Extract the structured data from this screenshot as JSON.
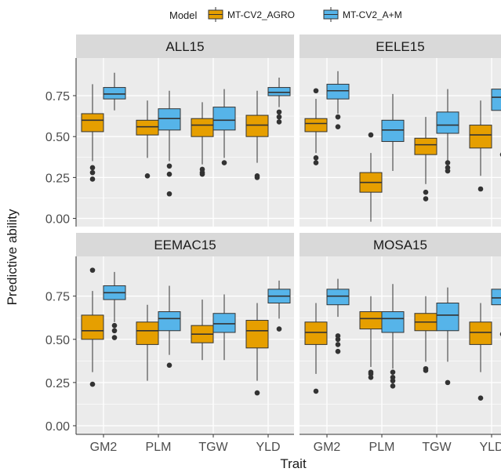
{
  "chart_data": {
    "type": "boxplot",
    "legend": {
      "title": "Model",
      "position": "top",
      "entries": [
        {
          "name": "MT-CV2_AGRO",
          "color": "#E69F00"
        },
        {
          "name": "MT-CV2_A+M",
          "color": "#56B4E9"
        }
      ]
    },
    "xlabel": "Trait",
    "ylabel": "Predictive ability",
    "categories": [
      "GM2",
      "PLM",
      "TGW",
      "YLD"
    ],
    "ylim": [
      -0.05,
      0.98
    ],
    "yticks": [
      0.0,
      0.25,
      0.5,
      0.75
    ],
    "ytick_labels": [
      "0.00",
      "0.25",
      "0.50",
      "0.75"
    ],
    "panel_background": "#ebebeb",
    "strip_background": "#d9d9d9",
    "grid": true,
    "panels": [
      {
        "title": "ALL15",
        "series": [
          {
            "name": "MT-CV2_AGRO",
            "boxes": [
              {
                "category": "GM2",
                "min": 0.35,
                "q1": 0.53,
                "median": 0.6,
                "q3": 0.64,
                "max": 0.82,
                "outliers": [
                  0.31,
                  0.28,
                  0.24
                ]
              },
              {
                "category": "PLM",
                "min": 0.37,
                "q1": 0.51,
                "median": 0.56,
                "q3": 0.6,
                "max": 0.72,
                "outliers": [
                  0.26
                ]
              },
              {
                "category": "TGW",
                "min": 0.33,
                "q1": 0.5,
                "median": 0.57,
                "q3": 0.61,
                "max": 0.71,
                "outliers": [
                  0.3,
                  0.28,
                  0.27
                ]
              },
              {
                "category": "YLD",
                "min": 0.34,
                "q1": 0.5,
                "median": 0.57,
                "q3": 0.63,
                "max": 0.78,
                "outliers": [
                  0.26,
                  0.25
                ]
              }
            ]
          },
          {
            "name": "MT-CV2_A+M",
            "boxes": [
              {
                "category": "GM2",
                "min": 0.66,
                "q1": 0.73,
                "median": 0.76,
                "q3": 0.8,
                "max": 0.89,
                "outliers": []
              },
              {
                "category": "PLM",
                "min": 0.35,
                "q1": 0.54,
                "median": 0.61,
                "q3": 0.67,
                "max": 0.78,
                "outliers": [
                  0.32,
                  0.27,
                  0.15
                ]
              },
              {
                "category": "TGW",
                "min": 0.37,
                "q1": 0.54,
                "median": 0.6,
                "q3": 0.68,
                "max": 0.79,
                "outliers": [
                  0.34
                ]
              },
              {
                "category": "YLD",
                "min": 0.68,
                "q1": 0.75,
                "median": 0.77,
                "q3": 0.8,
                "max": 0.86,
                "outliers": [
                  0.65,
                  0.62,
                  0.59
                ]
              }
            ]
          }
        ]
      },
      {
        "title": "EELE15",
        "series": [
          {
            "name": "MT-CV2_AGRO",
            "boxes": [
              {
                "category": "GM2",
                "min": 0.4,
                "q1": 0.53,
                "median": 0.58,
                "q3": 0.61,
                "max": 0.73,
                "outliers": [
                  0.78,
                  0.37,
                  0.34
                ]
              },
              {
                "category": "PLM",
                "min": -0.02,
                "q1": 0.16,
                "median": 0.22,
                "q3": 0.28,
                "max": 0.4,
                "outliers": [
                  0.51
                ]
              },
              {
                "category": "TGW",
                "min": 0.21,
                "q1": 0.39,
                "median": 0.45,
                "q3": 0.49,
                "max": 0.62,
                "outliers": [
                  0.16,
                  0.12
                ]
              },
              {
                "category": "YLD",
                "min": 0.26,
                "q1": 0.43,
                "median": 0.51,
                "q3": 0.57,
                "max": 0.72,
                "outliers": [
                  0.18
                ]
              }
            ]
          },
          {
            "name": "MT-CV2_A+M",
            "boxes": [
              {
                "category": "GM2",
                "min": 0.64,
                "q1": 0.73,
                "median": 0.78,
                "q3": 0.82,
                "max": 0.9,
                "outliers": [
                  0.62,
                  0.56
                ]
              },
              {
                "category": "PLM",
                "min": 0.29,
                "q1": 0.47,
                "median": 0.54,
                "q3": 0.6,
                "max": 0.76,
                "outliers": []
              },
              {
                "category": "TGW",
                "min": 0.35,
                "q1": 0.52,
                "median": 0.57,
                "q3": 0.65,
                "max": 0.79,
                "outliers": [
                  0.34,
                  0.31,
                  0.29
                ]
              },
              {
                "category": "YLD",
                "min": 0.53,
                "q1": 0.66,
                "median": 0.74,
                "q3": 0.79,
                "max": 0.88,
                "outliers": [
                  0.39
                ]
              }
            ]
          }
        ]
      },
      {
        "title": "EEMAC15",
        "series": [
          {
            "name": "MT-CV2_AGRO",
            "boxes": [
              {
                "category": "GM2",
                "min": 0.31,
                "q1": 0.5,
                "median": 0.55,
                "q3": 0.64,
                "max": 0.78,
                "outliers": [
                  0.9,
                  0.24
                ]
              },
              {
                "category": "PLM",
                "min": 0.26,
                "q1": 0.47,
                "median": 0.55,
                "q3": 0.6,
                "max": 0.7,
                "outliers": []
              },
              {
                "category": "TGW",
                "min": 0.38,
                "q1": 0.48,
                "median": 0.53,
                "q3": 0.58,
                "max": 0.73,
                "outliers": []
              },
              {
                "category": "YLD",
                "min": 0.26,
                "q1": 0.45,
                "median": 0.55,
                "q3": 0.61,
                "max": 0.71,
                "outliers": [
                  0.19
                ]
              }
            ]
          },
          {
            "name": "MT-CV2_A+M",
            "boxes": [
              {
                "category": "GM2",
                "min": 0.6,
                "q1": 0.73,
                "median": 0.77,
                "q3": 0.81,
                "max": 0.89,
                "outliers": [
                  0.58,
                  0.55,
                  0.51
                ]
              },
              {
                "category": "PLM",
                "min": 0.41,
                "q1": 0.55,
                "median": 0.62,
                "q3": 0.66,
                "max": 0.81,
                "outliers": [
                  0.35
                ]
              },
              {
                "category": "TGW",
                "min": 0.38,
                "q1": 0.54,
                "median": 0.59,
                "q3": 0.65,
                "max": 0.76,
                "outliers": []
              },
              {
                "category": "YLD",
                "min": 0.62,
                "q1": 0.71,
                "median": 0.75,
                "q3": 0.79,
                "max": 0.84,
                "outliers": [
                  0.56
                ]
              }
            ]
          }
        ]
      },
      {
        "title": "MOSA15",
        "series": [
          {
            "name": "MT-CV2_AGRO",
            "boxes": [
              {
                "category": "GM2",
                "min": 0.3,
                "q1": 0.47,
                "median": 0.54,
                "q3": 0.6,
                "max": 0.71,
                "outliers": [
                  0.2
                ]
              },
              {
                "category": "PLM",
                "min": 0.34,
                "q1": 0.56,
                "median": 0.62,
                "q3": 0.66,
                "max": 0.75,
                "outliers": [
                  0.31,
                  0.3,
                  0.28
                ]
              },
              {
                "category": "TGW",
                "min": 0.37,
                "q1": 0.55,
                "median": 0.6,
                "q3": 0.65,
                "max": 0.75,
                "outliers": [
                  0.33,
                  0.32
                ]
              },
              {
                "category": "YLD",
                "min": 0.31,
                "q1": 0.47,
                "median": 0.54,
                "q3": 0.6,
                "max": 0.71,
                "outliers": [
                  0.16
                ]
              }
            ]
          },
          {
            "name": "MT-CV2_A+M",
            "boxes": [
              {
                "category": "GM2",
                "min": 0.63,
                "q1": 0.7,
                "median": 0.75,
                "q3": 0.79,
                "max": 0.85,
                "outliers": [
                  0.52,
                  0.5,
                  0.47,
                  0.43
                ]
              },
              {
                "category": "PLM",
                "min": 0.33,
                "q1": 0.54,
                "median": 0.62,
                "q3": 0.66,
                "max": 0.82,
                "outliers": [
                  0.31,
                  0.28,
                  0.26,
                  0.23
                ]
              },
              {
                "category": "TGW",
                "min": 0.37,
                "q1": 0.55,
                "median": 0.64,
                "q3": 0.71,
                "max": 0.8,
                "outliers": [
                  0.25
                ]
              },
              {
                "category": "YLD",
                "min": 0.59,
                "q1": 0.7,
                "median": 0.74,
                "q3": 0.79,
                "max": 0.86,
                "outliers": [
                  0.53
                ]
              }
            ]
          }
        ]
      }
    ]
  }
}
